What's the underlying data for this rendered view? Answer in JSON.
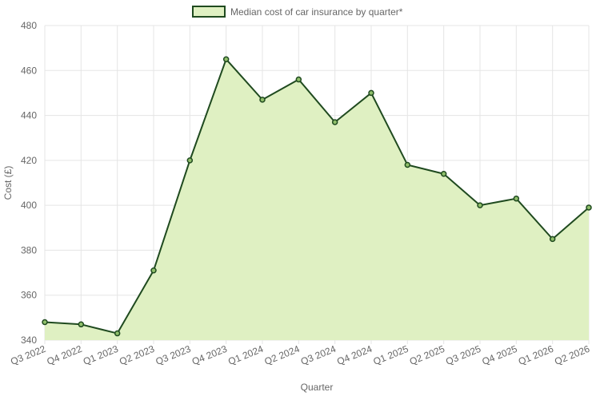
{
  "chart_data": {
    "type": "area",
    "categories": [
      "Q3 2022",
      "Q4 2022",
      "Q1 2023",
      "Q2 2023",
      "Q3 2023",
      "Q4 2023",
      "Q1 2024",
      "Q2 2024",
      "Q3 2024",
      "Q4 2024",
      "Q1 2025",
      "Q2 2025",
      "Q3 2025",
      "Q4 2025",
      "Q1 2026",
      "Q2 2026"
    ],
    "series": [
      {
        "name": "Median cost of car insurance by quarter*",
        "values": [
          348,
          347,
          343,
          371,
          420,
          465,
          447,
          456,
          437,
          450,
          418,
          414,
          400,
          403,
          385,
          399
        ]
      }
    ],
    "xlabel": "Quarter",
    "ylabel": "Cost (£)",
    "ylim": [
      340,
      480
    ],
    "yticks": [
      340,
      360,
      380,
      400,
      420,
      440,
      460,
      480
    ],
    "grid": true,
    "legend_position": "top-center",
    "colors": {
      "line": "#1f4a1f",
      "fill": "#dff0c2",
      "point_fill": "#8fbf6a",
      "grid": "#e5e5e5",
      "text": "#666666"
    }
  }
}
